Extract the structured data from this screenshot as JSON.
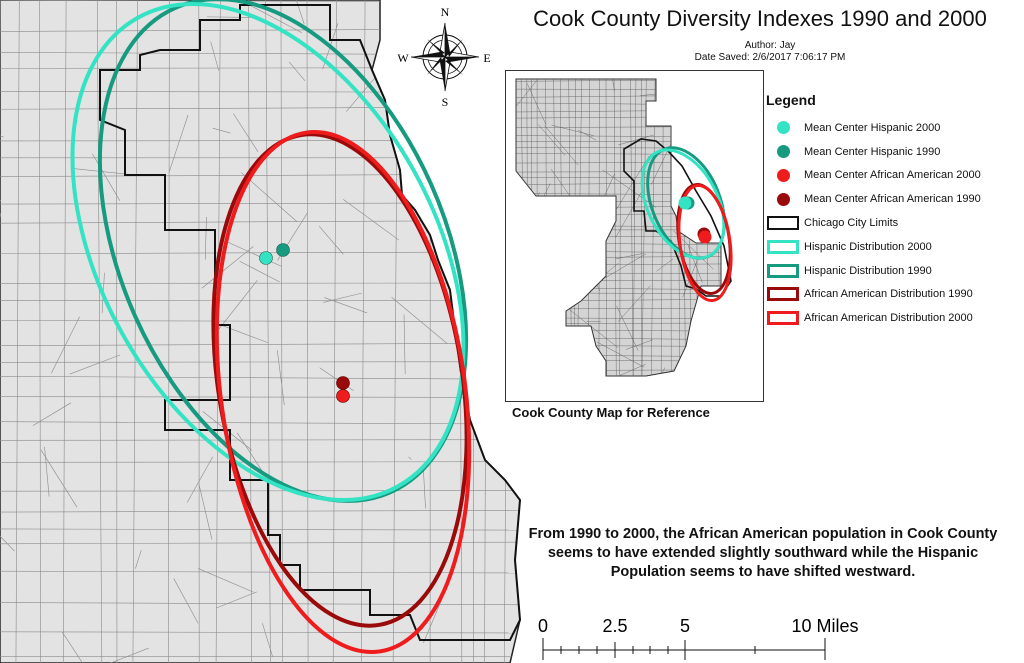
{
  "map_title": "Cook County Diversity Indexes 1990 and 2000",
  "author": "Author: Jay",
  "date_saved": "Date Saved: 2/6/2017 7:06:17 PM",
  "compass": {
    "n": "N",
    "s": "S",
    "e": "E",
    "w": "W"
  },
  "legend": {
    "title": "Legend",
    "items": [
      {
        "label": "Mean Center Hispanic 2000",
        "symbol": "point",
        "color": "#33e3c4"
      },
      {
        "label": "Mean Center Hispanic 1990",
        "symbol": "point",
        "color": "#169a80"
      },
      {
        "label": "Mean Center African American 2000",
        "symbol": "point",
        "color": "#ee1c1c"
      },
      {
        "label": "Mean Center African American 1990",
        "symbol": "point",
        "color": "#9b0a0a"
      },
      {
        "label": "Chicago City Limits",
        "symbol": "outline",
        "color": "#111111"
      },
      {
        "label": "Hispanic Distribution 2000",
        "symbol": "outline",
        "color": "#33e3c4"
      },
      {
        "label": "Hispanic Distribution 1990",
        "symbol": "outline",
        "color": "#169a80"
      },
      {
        "label": "African American Distribution 1990",
        "symbol": "outline",
        "color": "#9b0a0a"
      },
      {
        "label": "African American Distribution 2000",
        "symbol": "outline",
        "color": "#ee1c1c"
      }
    ]
  },
  "reference_caption": "Cook County Map for Reference",
  "summary": "From 1990 to 2000, the African American population in Cook County seems to have extended slightly southward while the Hispanic Population seems to have shifted westward.",
  "scale_bar": {
    "labels": [
      "0",
      "2.5",
      "5",
      "10 Miles"
    ]
  },
  "colors": {
    "land": "#e3e3e3",
    "water": "#ffffff",
    "tract_lines": "#8a8a8a",
    "hispanic_2000": "#33e3c4",
    "hispanic_1990": "#169a80",
    "african_american_2000": "#ee1c1c",
    "african_american_1990": "#9b0a0a"
  }
}
